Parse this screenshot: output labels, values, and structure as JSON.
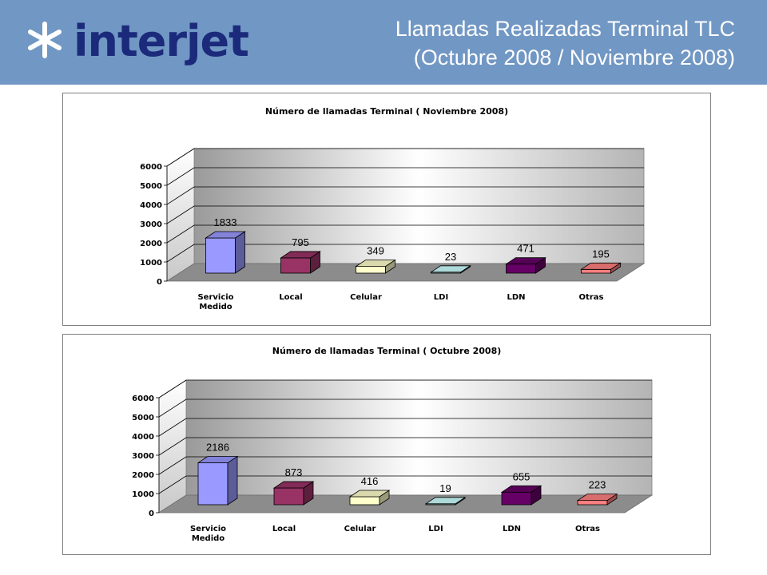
{
  "header": {
    "logo_text": "interjet",
    "title_line1": "Llamadas Realizadas Terminal TLC",
    "title_line2": "(Octubre 2008 / Noviembre 2008)"
  },
  "colors": {
    "header_bg": "#7197c4",
    "logo": "#1b2a7a",
    "bars": [
      "#9999ff",
      "#993366",
      "#ffffcc",
      "#ccffff",
      "#660066",
      "#ff8080"
    ]
  },
  "chart_data": [
    {
      "type": "bar",
      "title": "Número de llamadas Terminal ( Noviembre 2008)",
      "categories": [
        "Servicio\nMedido",
        "Local",
        "Celular",
        "LDI",
        "LDN",
        "Otras"
      ],
      "values": [
        1833,
        795,
        349,
        23,
        471,
        195
      ],
      "ylim": [
        0,
        6000
      ],
      "yticks": [
        0,
        1000,
        2000,
        3000,
        4000,
        5000,
        6000
      ],
      "grid": true,
      "legend": "none"
    },
    {
      "type": "bar",
      "title": "Número de llamadas Terminal ( Octubre 2008)",
      "categories": [
        "Servicio\nMedido",
        "Local",
        "Celular",
        "LDI",
        "LDN",
        "Otras"
      ],
      "values": [
        2186,
        873,
        416,
        19,
        655,
        223
      ],
      "ylim": [
        0,
        6000
      ],
      "yticks": [
        0,
        1000,
        2000,
        3000,
        4000,
        5000,
        6000
      ],
      "grid": true,
      "legend": "none"
    }
  ]
}
